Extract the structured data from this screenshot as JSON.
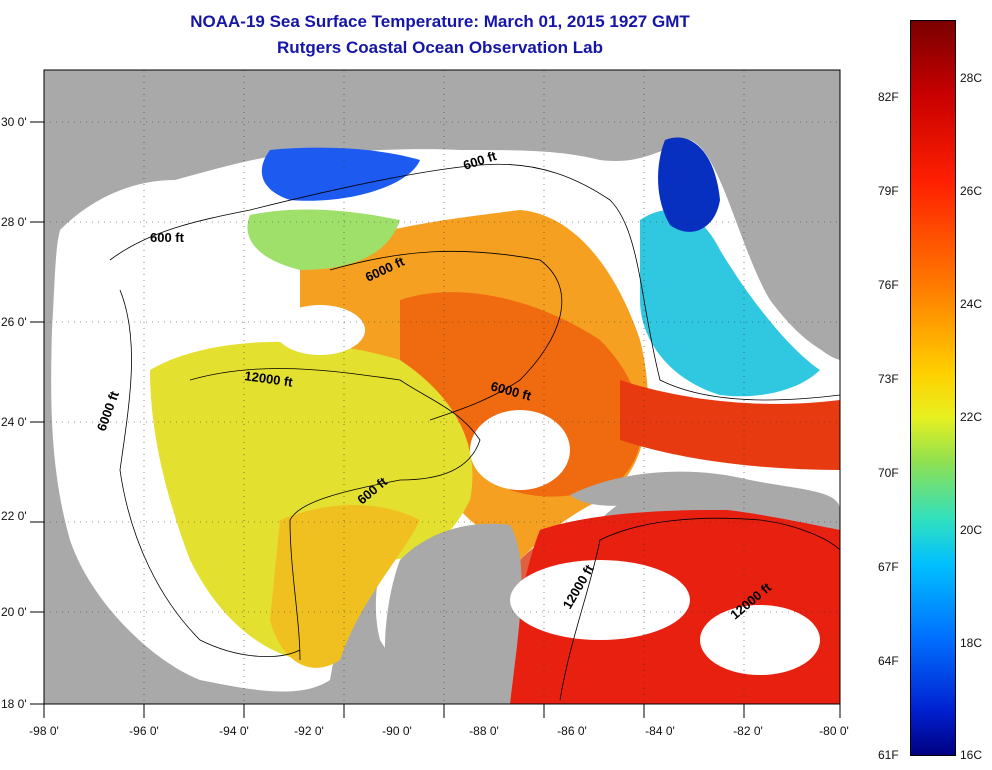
{
  "title": "NOAA-19 Sea Surface Temperature:  March 01, 2015 1927 GMT",
  "subtitle": "Rutgers Coastal Ocean Observation Lab",
  "x_axis_labels": [
    "-98 0'",
    "-96 0'",
    "-94 0'",
    "-92 0'",
    "-90 0'",
    "-88 0'",
    "-86 0'",
    "-84 0'",
    "-82 0'",
    "-80 0'"
  ],
  "y_axis_labels": [
    "30 0'",
    "28 0'",
    "26 0'",
    "24 0'",
    "22 0'",
    "20 0'",
    "18 0'"
  ],
  "colorbar": {
    "fahrenheit_labels": [
      "82F",
      "79F",
      "76F",
      "73F",
      "70F",
      "67F",
      "64F",
      "61F"
    ],
    "celsius_labels": [
      "28C",
      "26C",
      "24C",
      "22C",
      "20C",
      "18C",
      "16C"
    ]
  },
  "contour_labels": [
    "600 ft",
    "600 ft",
    "6000 ft",
    "6000 ft",
    "12000 ft",
    "6000 ft",
    "600 ft",
    "12000 ft",
    "12000 ft"
  ],
  "colors": {
    "land": "#a9a9a9",
    "cloud": "#ffffff",
    "title": "#1515a8"
  }
}
